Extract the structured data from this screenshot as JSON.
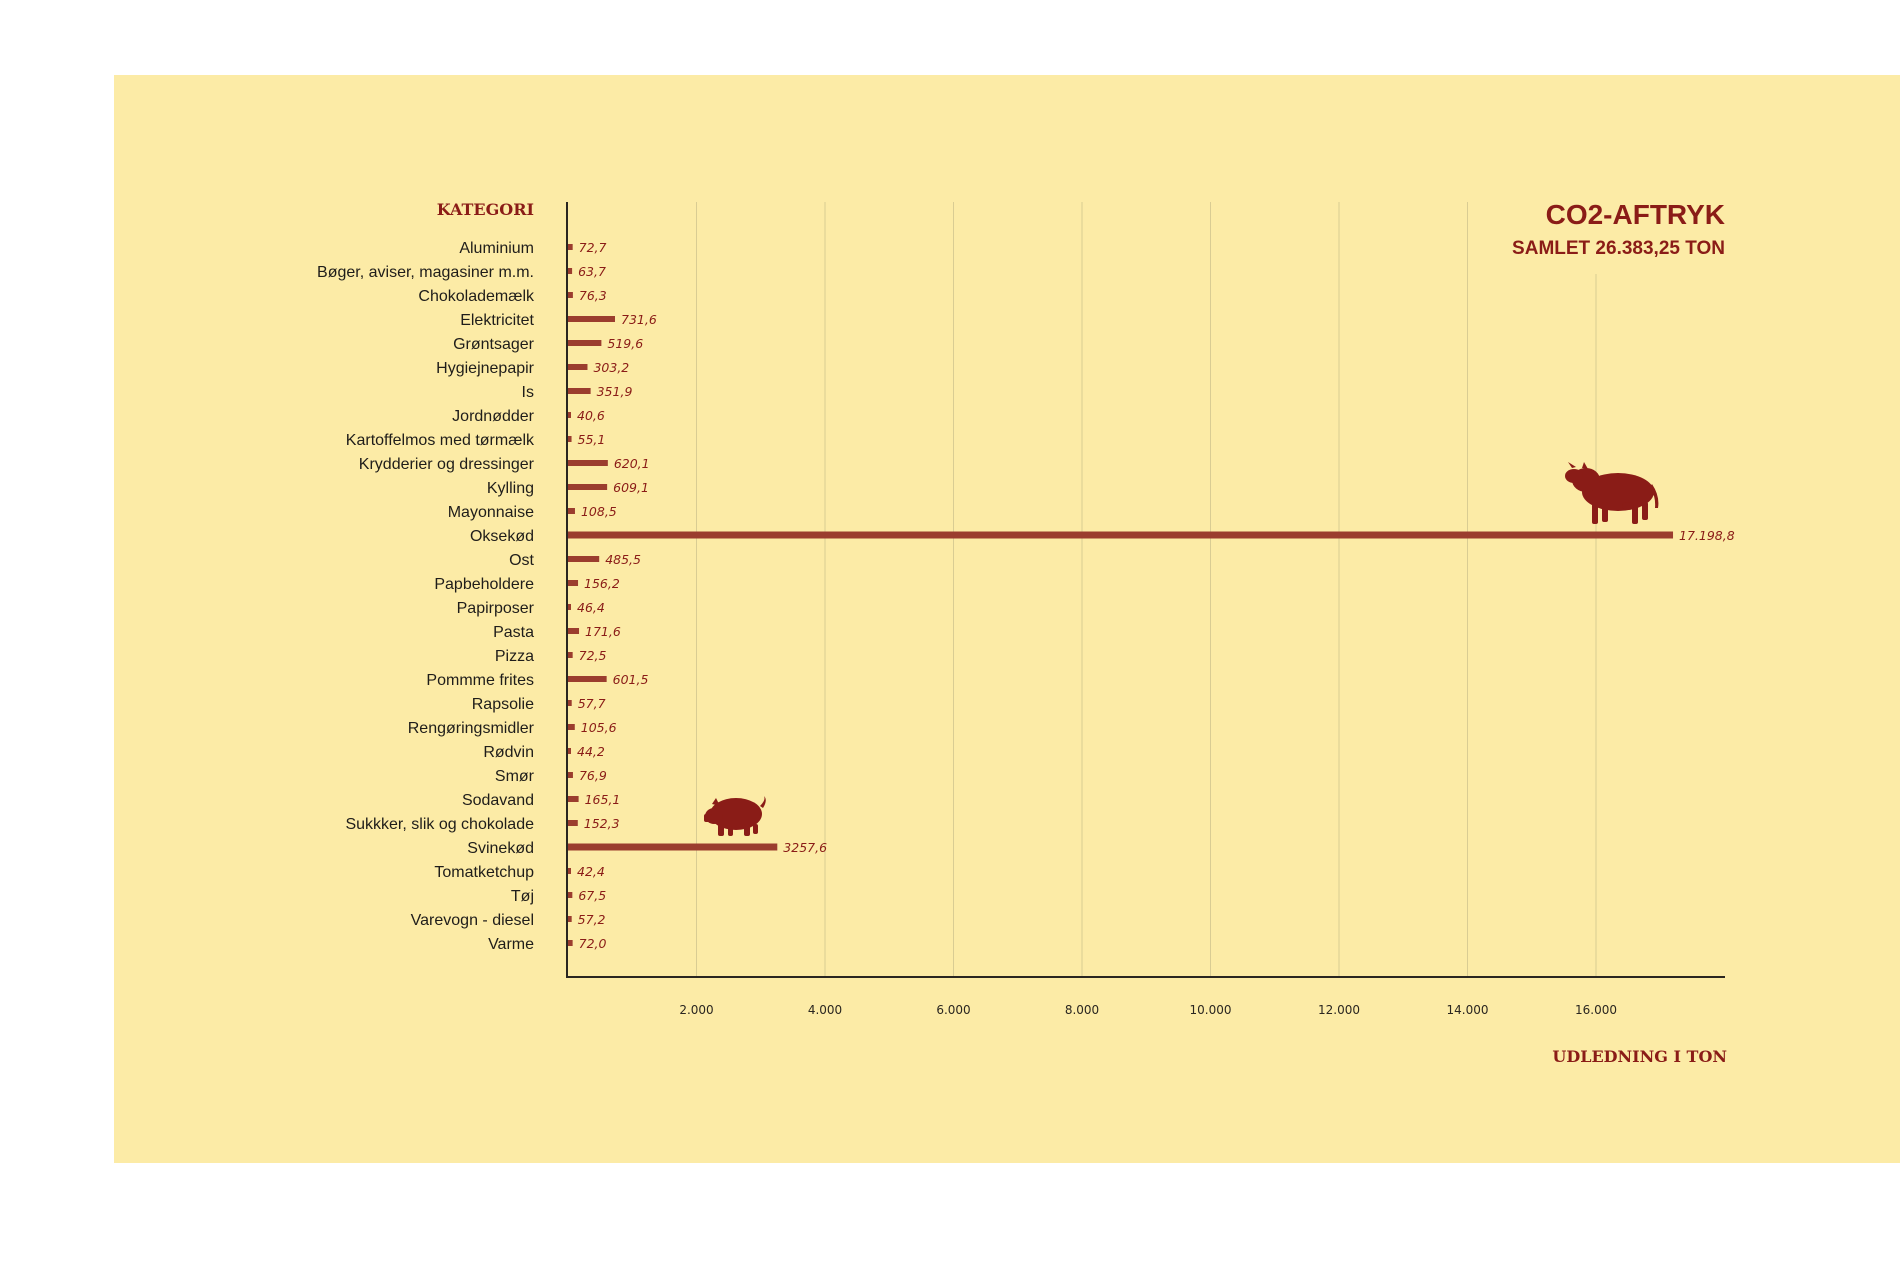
{
  "chart_data": {
    "type": "bar",
    "orientation": "horizontal",
    "title": "CO2-AFTRYK",
    "subtitle": "SAMLET 26.383,25 TON",
    "category_header": "KATEGORI",
    "xlabel": "UDLEDNING I TON",
    "xlim": [
      0,
      18000
    ],
    "x_ticks": [
      2000,
      4000,
      6000,
      8000,
      10000,
      12000,
      14000,
      16000
    ],
    "x_tick_labels": [
      "2.000",
      "4.000",
      "6.000",
      "8.000",
      "10.000",
      "12.000",
      "14.000",
      "16.000"
    ],
    "grid": "vertical",
    "colors": {
      "bar": "#9b3d2e",
      "accent": "#8a1c17",
      "background": "#fceba6",
      "grid": "#d9cc93"
    },
    "icons": {
      "cow": "cow-icon",
      "pig": "pig-icon"
    },
    "categories": [
      "Aluminium",
      "Bøger, aviser, magasiner m.m.",
      "Chokolademælk",
      "Elektricitet",
      "Grøntsager",
      "Hygiejnepapir",
      "Is",
      "Jordnødder",
      "Kartoffelmos med tørmælk",
      "Krydderier og dressinger",
      "Kylling",
      "Mayonnaise",
      "Oksekød",
      "Ost",
      "Papbeholdere",
      "Papirposer",
      "Pasta",
      "Pizza",
      "Pommme frites",
      "Rapsolie",
      "Rengøringsmidler",
      "Rødvin",
      "Smør",
      "Sodavand",
      "Sukkker, slik og chokolade",
      "Svinekød",
      "Tomatketchup",
      "Tøj",
      "Varevogn - diesel",
      "Varme"
    ],
    "values": [
      72.7,
      63.7,
      76.3,
      731.6,
      519.6,
      303.2,
      351.9,
      40.6,
      55.1,
      620.1,
      609.1,
      108.5,
      17198.8,
      485.5,
      156.2,
      46.4,
      171.6,
      72.5,
      601.5,
      57.7,
      105.6,
      44.2,
      76.9,
      165.1,
      152.3,
      3257.6,
      42.4,
      67.5,
      57.2,
      72.0
    ],
    "value_labels": [
      "72,7",
      "63,7",
      "76,3",
      "731,6",
      "519,6",
      "303,2",
      "351,9",
      "40,6",
      "55,1",
      "620,1",
      "609,1",
      "108,5",
      "17.198,8",
      "485,5",
      "156,2",
      "46,4",
      "171,6",
      "72,5",
      "601,5",
      "57,7",
      "105,6",
      "44,2",
      "76,9",
      "165,1",
      "152,3",
      "3257,6",
      "42,4",
      "67,5",
      "57,2",
      "72,0"
    ]
  }
}
